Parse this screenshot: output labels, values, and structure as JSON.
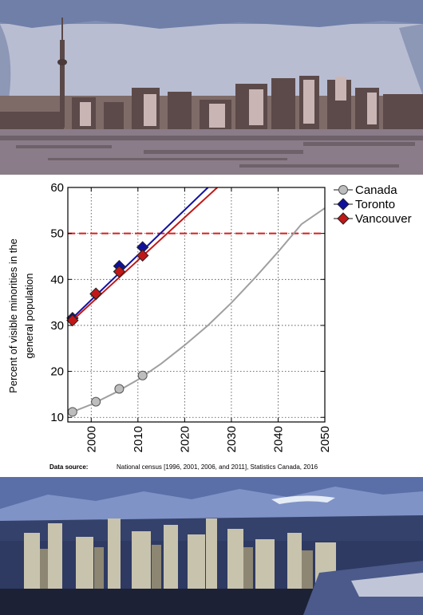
{
  "images": {
    "top": "Toronto skyline with CN Tower, posterized",
    "bottom": "Vancouver skyline with mountains, posterized"
  },
  "colors": {
    "canada": "#a0a0a0",
    "toronto": "#1010a0",
    "vancouver": "#c01818",
    "threshold": "#d42020"
  },
  "source": {
    "label": "Data source:",
    "text": "National census [1996, 2001, 2006, and 2011], Statistics Canada, 2016"
  },
  "chart_data": {
    "type": "line",
    "xlabel": "",
    "ylabel": "Percent of visible minorities in the general population",
    "xlim": [
      1995,
      2050
    ],
    "ylim": [
      9,
      60
    ],
    "x_ticks": [
      2000,
      2010,
      2020,
      2030,
      2040,
      2050
    ],
    "y_ticks": [
      10,
      20,
      30,
      40,
      50,
      60
    ],
    "grid": true,
    "legend_position": "right-outside-top",
    "threshold_line": 50,
    "series": [
      {
        "name": "Canada",
        "marker": "circle",
        "points": {
          "x": [
            1996,
            2001,
            2006,
            2011
          ],
          "y": [
            11.2,
            13.4,
            16.2,
            19.1
          ]
        },
        "trend": {
          "x": [
            1996,
            2000,
            2005,
            2010,
            2015,
            2020,
            2025,
            2030,
            2035,
            2040,
            2045,
            2050
          ],
          "y": [
            11.2,
            12.8,
            15.3,
            18.2,
            21.7,
            25.7,
            30.0,
            34.9,
            40.3,
            46.0,
            52.0,
            55.5
          ]
        }
      },
      {
        "name": "Toronto",
        "marker": "diamond",
        "points": {
          "x": [
            1996,
            2001,
            2006,
            2011
          ],
          "y": [
            31.6,
            36.8,
            42.9,
            47.0
          ]
        },
        "trend": {
          "x": [
            1996,
            2025
          ],
          "y": [
            31.6,
            60.0
          ]
        }
      },
      {
        "name": "Vancouver",
        "marker": "diamond",
        "points": {
          "x": [
            1996,
            2001,
            2006,
            2011
          ],
          "y": [
            31.1,
            36.9,
            41.7,
            45.2
          ]
        },
        "trend": {
          "x": [
            1996,
            2027
          ],
          "y": [
            31.1,
            60.0
          ]
        }
      }
    ]
  }
}
